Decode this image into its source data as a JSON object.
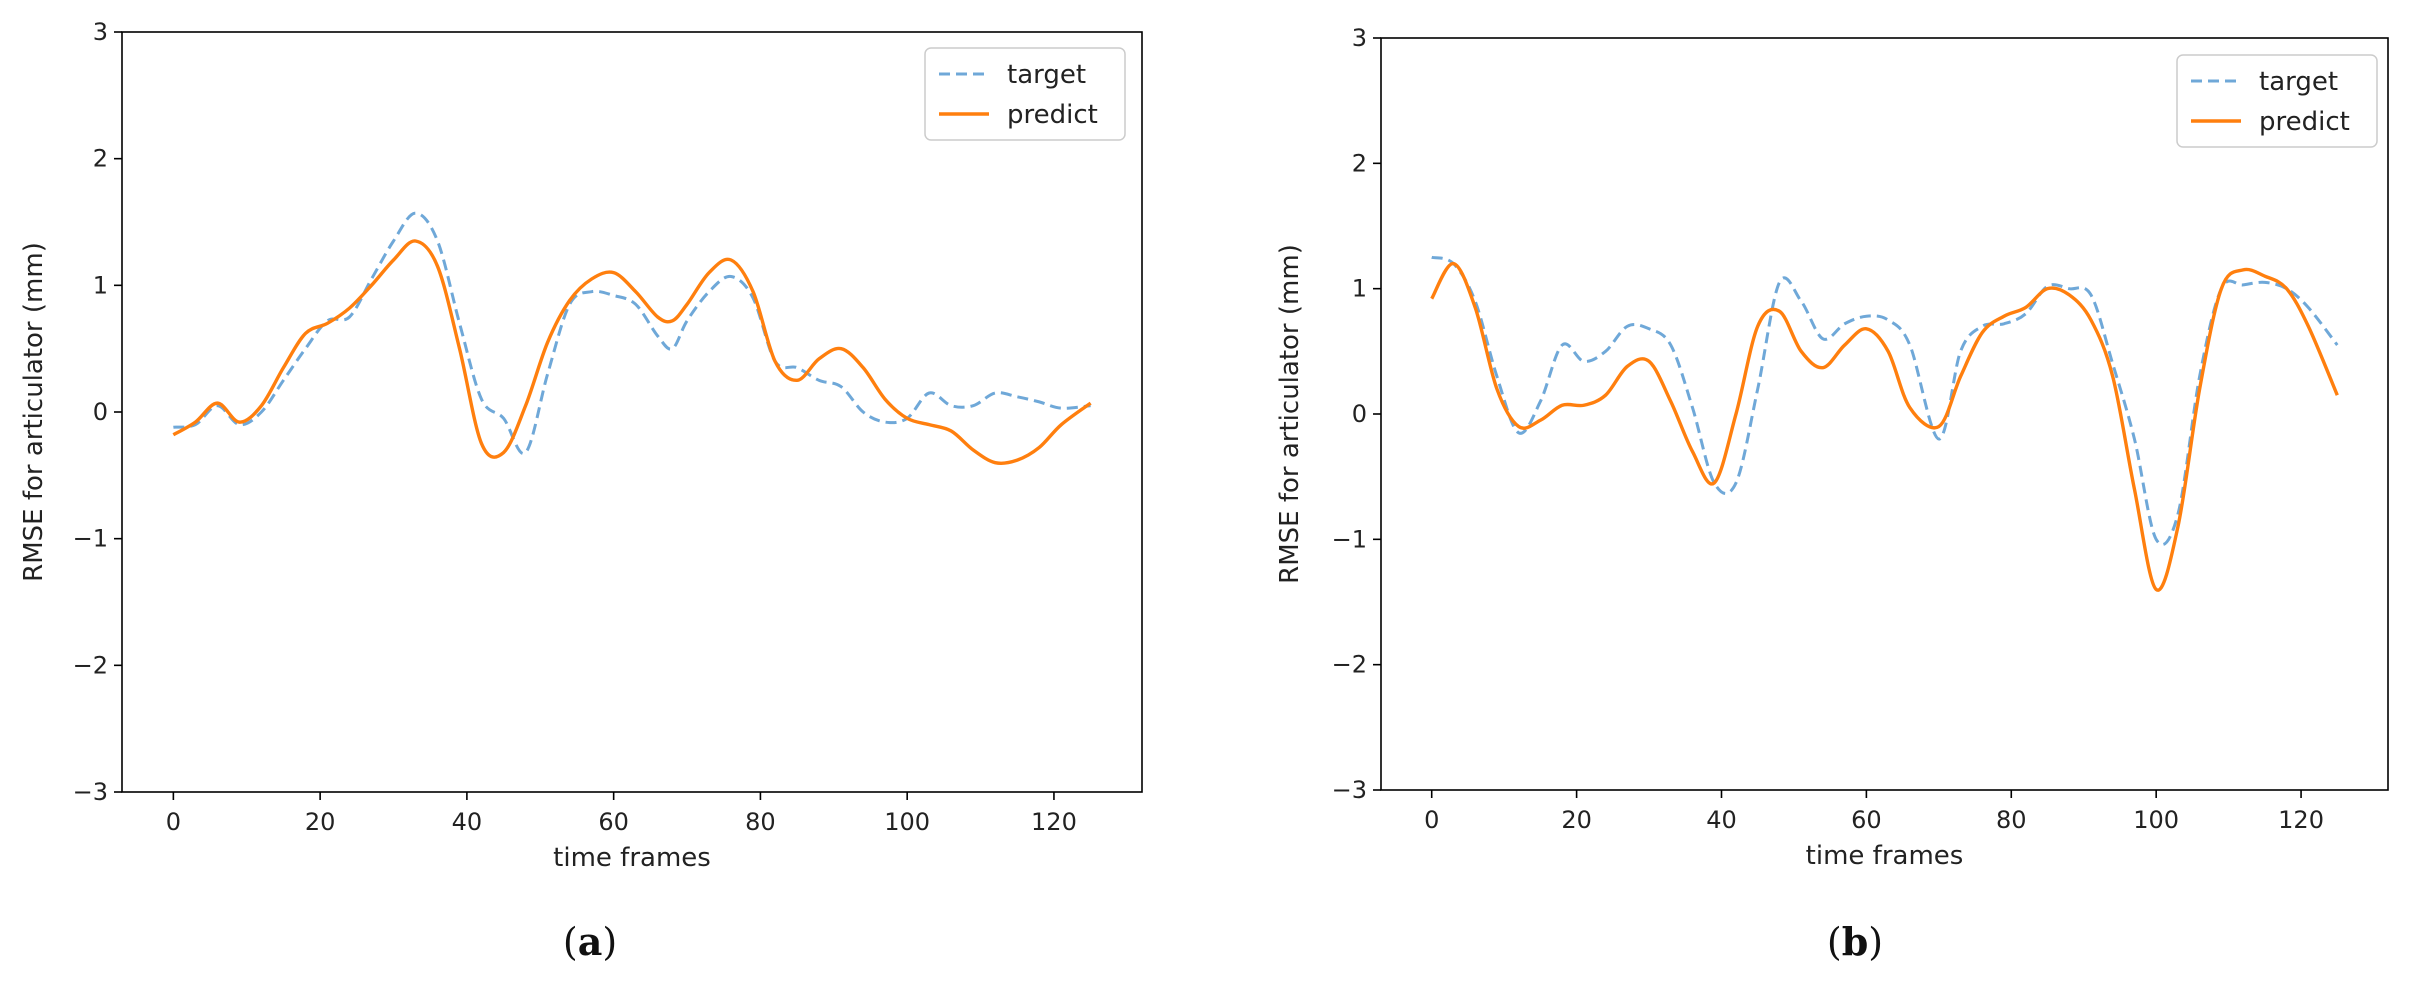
{
  "chart_data": [
    {
      "type": "line",
      "panel": "a",
      "caption": {
        "open": "(",
        "letter": "a",
        "close": ")"
      },
      "xlabel": "time frames",
      "ylabel": "RMSE for articulator (mm)",
      "xlim": [
        -7,
        132
      ],
      "ylim": [
        -3,
        3
      ],
      "xticks": [
        0,
        20,
        40,
        60,
        80,
        100,
        120
      ],
      "yticks": [
        -3,
        -2,
        -1,
        0,
        1,
        2,
        3
      ],
      "legend_position": "top-right",
      "series": [
        {
          "name": "target",
          "style": "dashed",
          "color": "#6fa8d8",
          "x": [
            0,
            3,
            6,
            9,
            12,
            15,
            18,
            21,
            24,
            27,
            30,
            33,
            36,
            39,
            42,
            45,
            48,
            51,
            54,
            57,
            60,
            63,
            66,
            68,
            70,
            73,
            76,
            79,
            82,
            85,
            88,
            91,
            94,
            97,
            100,
            103,
            106,
            109,
            112,
            115,
            118,
            121,
            125
          ],
          "y": [
            -0.12,
            -0.1,
            0.05,
            -0.1,
            0.0,
            0.25,
            0.5,
            0.72,
            0.75,
            1.05,
            1.35,
            1.57,
            1.35,
            0.7,
            0.1,
            -0.05,
            -0.32,
            0.3,
            0.85,
            0.95,
            0.92,
            0.85,
            0.6,
            0.5,
            0.72,
            0.95,
            1.07,
            0.9,
            0.4,
            0.35,
            0.25,
            0.2,
            0.0,
            -0.08,
            -0.05,
            0.15,
            0.05,
            0.05,
            0.15,
            0.12,
            0.08,
            0.03,
            0.05
          ]
        },
        {
          "name": "predict",
          "style": "solid",
          "color": "#ff7f0e",
          "x": [
            0,
            3,
            6,
            9,
            12,
            15,
            18,
            21,
            24,
            27,
            30,
            33,
            36,
            39,
            42,
            45,
            48,
            51,
            54,
            57,
            60,
            63,
            66,
            68,
            70,
            73,
            76,
            79,
            82,
            85,
            88,
            91,
            94,
            97,
            100,
            103,
            106,
            109,
            112,
            115,
            118,
            121,
            125
          ],
          "y": [
            -0.18,
            -0.08,
            0.07,
            -0.08,
            0.05,
            0.35,
            0.62,
            0.7,
            0.82,
            1.0,
            1.2,
            1.35,
            1.15,
            0.5,
            -0.25,
            -0.32,
            0.05,
            0.55,
            0.88,
            1.05,
            1.1,
            0.95,
            0.75,
            0.72,
            0.85,
            1.1,
            1.2,
            0.95,
            0.4,
            0.25,
            0.42,
            0.5,
            0.35,
            0.1,
            -0.05,
            -0.1,
            -0.15,
            -0.3,
            -0.4,
            -0.38,
            -0.28,
            -0.1,
            0.07
          ]
        }
      ]
    },
    {
      "type": "line",
      "panel": "b",
      "caption": {
        "open": "(",
        "letter": "b",
        "close": ")"
      },
      "xlabel": "time frames",
      "ylabel": "RMSE for articulator (mm)",
      "xlim": [
        -7,
        132
      ],
      "ylim": [
        -3,
        3
      ],
      "xticks": [
        0,
        20,
        40,
        60,
        80,
        100,
        120
      ],
      "yticks": [
        -3,
        -2,
        -1,
        0,
        1,
        2,
        3
      ],
      "legend_position": "top-right",
      "series": [
        {
          "name": "target",
          "style": "dashed",
          "color": "#6fa8d8",
          "x": [
            0,
            3,
            6,
            9,
            12,
            15,
            18,
            21,
            24,
            27,
            30,
            33,
            36,
            39,
            42,
            45,
            48,
            51,
            54,
            57,
            60,
            63,
            66,
            70,
            73,
            76,
            79,
            82,
            85,
            88,
            91,
            94,
            97,
            100,
            103,
            106,
            109,
            112,
            115,
            118,
            121,
            125
          ],
          "y": [
            1.25,
            1.2,
            0.9,
            0.3,
            -0.15,
            0.1,
            0.55,
            0.42,
            0.5,
            0.7,
            0.68,
            0.55,
            0.05,
            -0.55,
            -0.55,
            0.2,
            1.05,
            0.9,
            0.6,
            0.72,
            0.78,
            0.75,
            0.55,
            -0.2,
            0.5,
            0.7,
            0.72,
            0.8,
            1.02,
            1.0,
            0.95,
            0.4,
            -0.2,
            -1.0,
            -0.8,
            0.3,
            1.0,
            1.03,
            1.05,
            1.0,
            0.85,
            0.55
          ]
        },
        {
          "name": "predict",
          "style": "solid",
          "color": "#ff7f0e",
          "x": [
            0,
            3,
            6,
            9,
            12,
            15,
            18,
            21,
            24,
            27,
            30,
            33,
            36,
            39,
            42,
            45,
            48,
            51,
            54,
            57,
            60,
            63,
            66,
            70,
            73,
            76,
            79,
            82,
            85,
            88,
            91,
            94,
            97,
            100,
            103,
            106,
            109,
            112,
            115,
            118,
            121,
            125
          ],
          "y": [
            0.92,
            1.2,
            0.85,
            0.2,
            -0.1,
            -0.05,
            0.07,
            0.07,
            0.15,
            0.38,
            0.42,
            0.1,
            -0.3,
            -0.55,
            0.0,
            0.7,
            0.82,
            0.5,
            0.37,
            0.55,
            0.68,
            0.5,
            0.05,
            -0.1,
            0.3,
            0.65,
            0.78,
            0.85,
            1.0,
            0.95,
            0.75,
            0.3,
            -0.6,
            -1.4,
            -0.9,
            0.2,
            1.0,
            1.15,
            1.1,
            1.0,
            0.7,
            0.15
          ]
        }
      ]
    }
  ]
}
